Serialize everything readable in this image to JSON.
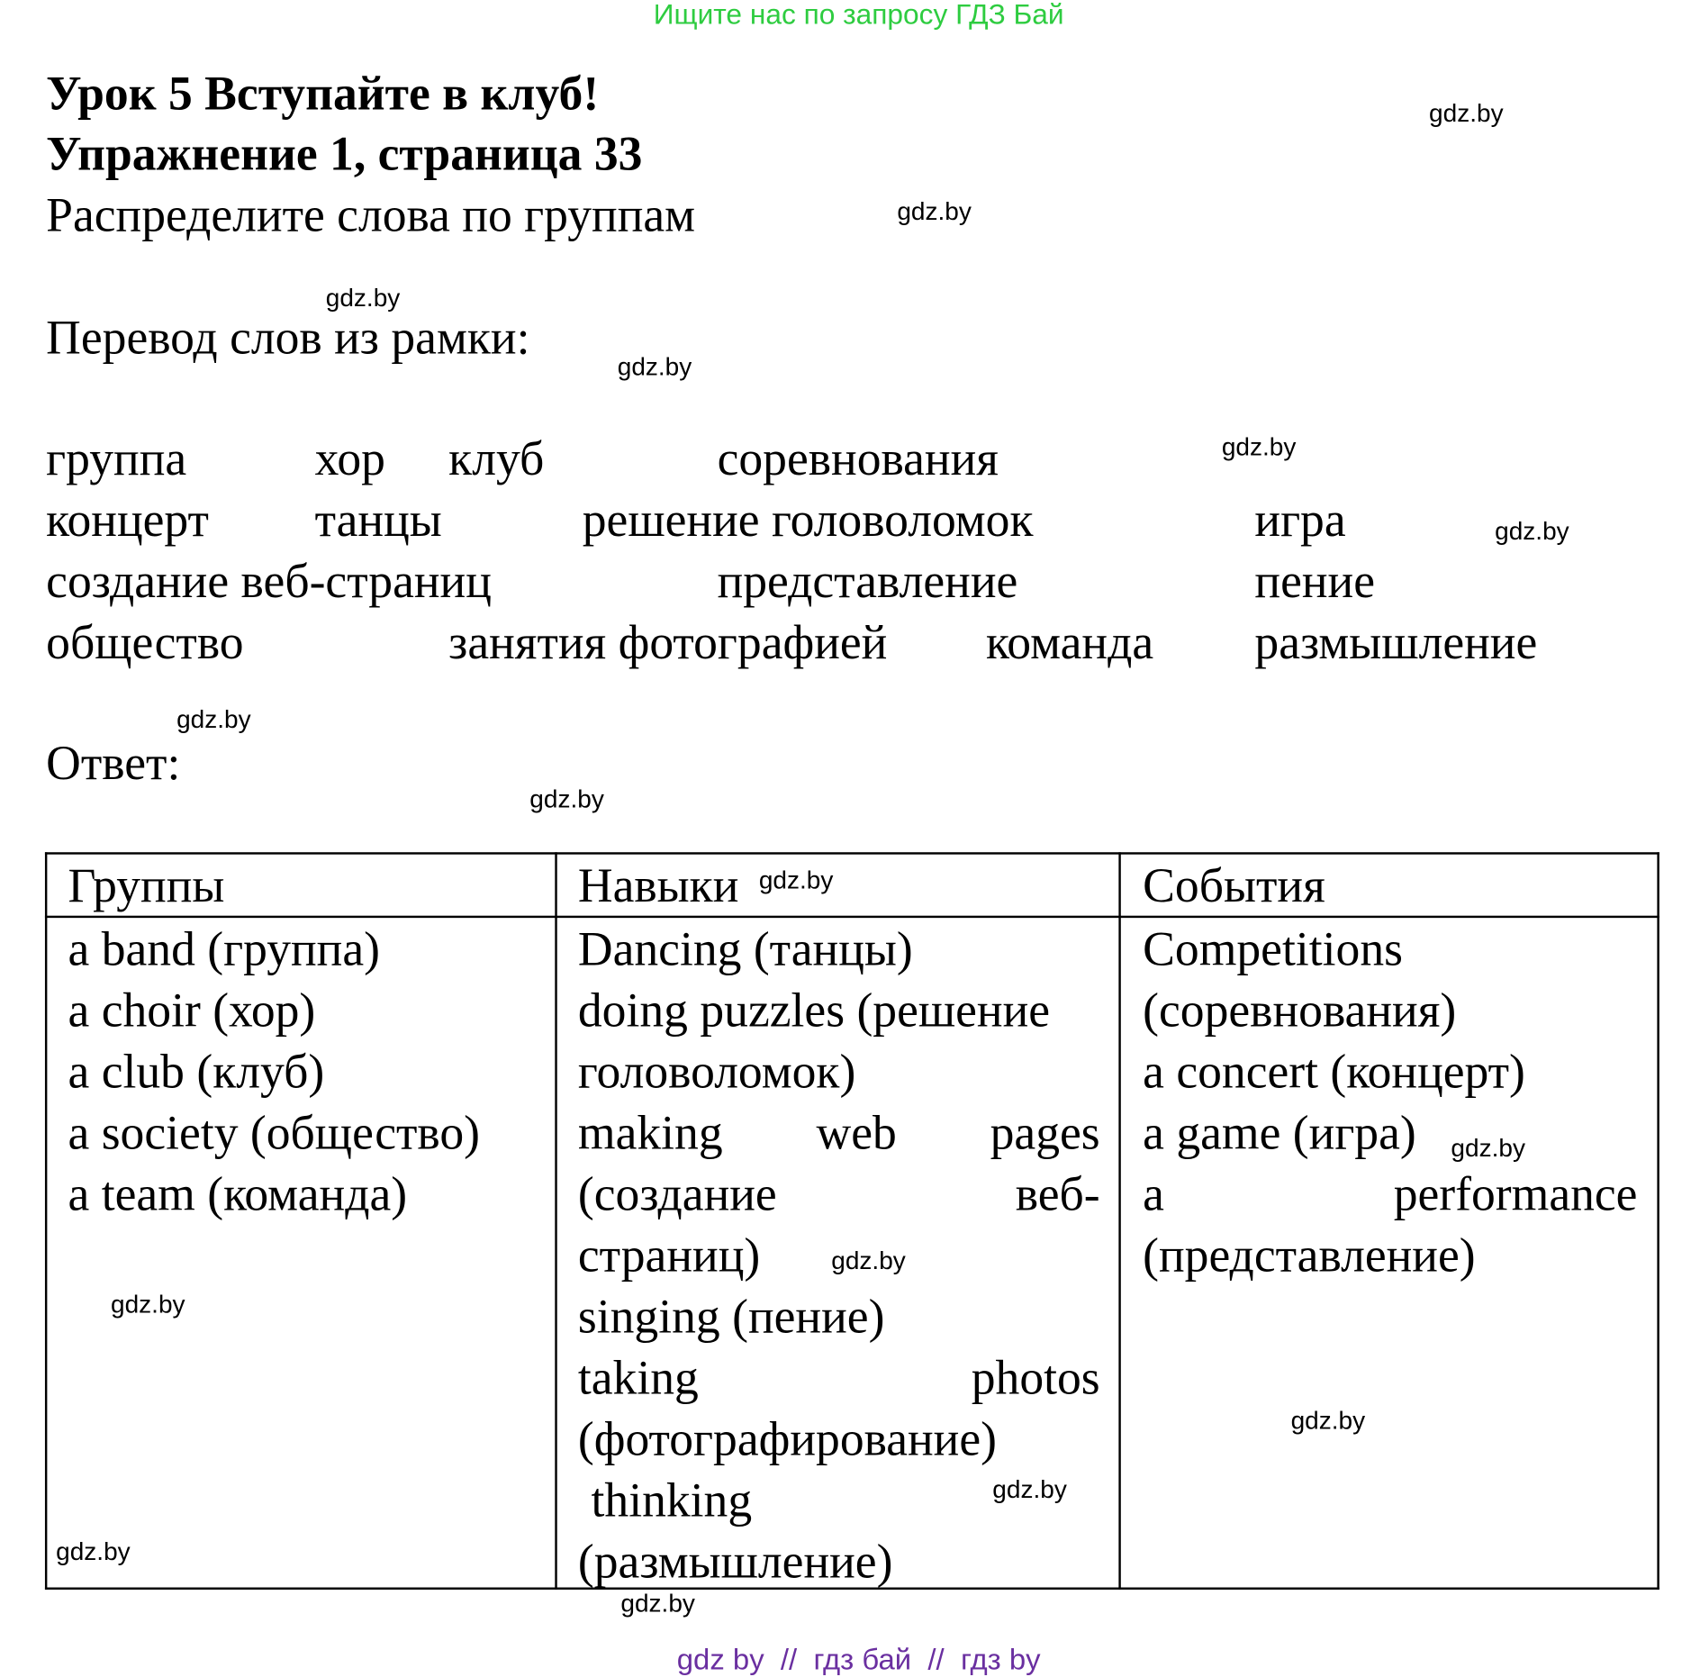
{
  "banner_top": "Ищите нас по запросу ГДЗ Бай",
  "title_lesson": "Урок 5 Вступайте в клуб!",
  "title_exercise": "Упражнение 1, страница 33",
  "task": "Распределите слова по группам",
  "translation_label": "Перевод слов из рамки:",
  "words": [
    "группа",
    "хор",
    "клуб",
    "соревнования",
    "концерт",
    "танцы",
    "решение головоломок",
    "игра",
    "создание веб-страниц",
    "представление",
    "пение",
    "общество",
    "занятия фотографией",
    "команда",
    "размышление"
  ],
  "answer_label": "Ответ:",
  "table": {
    "headers": [
      "Группы",
      "Навыки",
      "События"
    ],
    "columns": [
      [
        "a band (группа)",
        "a choir (хор)",
        "a club (клуб)",
        "a society (общество)",
        "a team (команда)"
      ],
      [
        "Dancing (танцы)",
        "doing puzzles (решение",
        "головоломок)",
        "making web pages",
        "(создание веб-",
        "страниц)",
        "singing (пение)",
        "taking photos",
        "(фотографирование)",
        "thinking",
        "(размышление)"
      ],
      [
        "Competitions",
        "(соревнования)",
        "a concert (концерт)",
        "a game (игра)",
        "a performance",
        "(представление)"
      ]
    ]
  },
  "watermark": "gdz.by",
  "banner_bottom": "gdz by  //  гдз бай  //  гдз by",
  "colors": {
    "banner_top": "#2ecc40",
    "banner_bottom": "#6a2fa0"
  }
}
